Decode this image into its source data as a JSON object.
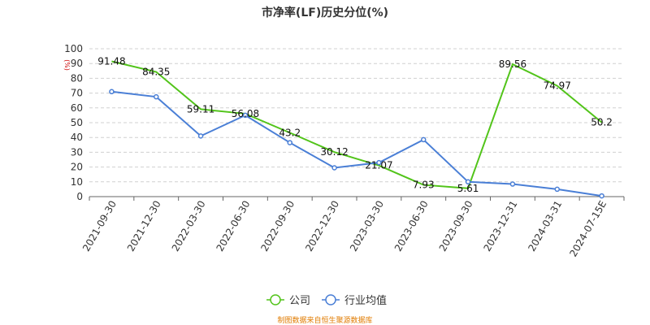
{
  "chart_data": {
    "type": "line",
    "title": "市净率(LF)历史分位(%)",
    "unit_label": "(%)",
    "categories": [
      "2021-09-30",
      "2021-12-30",
      "2022-03-30",
      "2022-06-30",
      "2022-09-30",
      "2022-12-30",
      "2023-03-30",
      "2023-06-30",
      "2023-09-30",
      "2023-12-31",
      "2024-03-31",
      "2024-07-15E"
    ],
    "ylim": [
      0,
      100
    ],
    "yticks": [
      0,
      10,
      20,
      30,
      40,
      50,
      60,
      70,
      80,
      90,
      100
    ],
    "grid": true,
    "series": [
      {
        "name": "公司",
        "color": "#52c41a",
        "marker": "none",
        "show_labels": true,
        "values": [
          91.48,
          84.35,
          59.11,
          56.08,
          43.2,
          30.12,
          21.07,
          7.93,
          5.61,
          89.56,
          74.97,
          50.2
        ]
      },
      {
        "name": "行业均值",
        "color": "#4a7fd6",
        "marker": "circle",
        "show_labels": false,
        "values": [
          71,
          67.5,
          41,
          55,
          36.5,
          19.5,
          23,
          38.5,
          10,
          8.5,
          5,
          0.5
        ]
      }
    ],
    "legend_position": "bottom-center",
    "source": "制图数据来自恒生聚源数据库"
  }
}
